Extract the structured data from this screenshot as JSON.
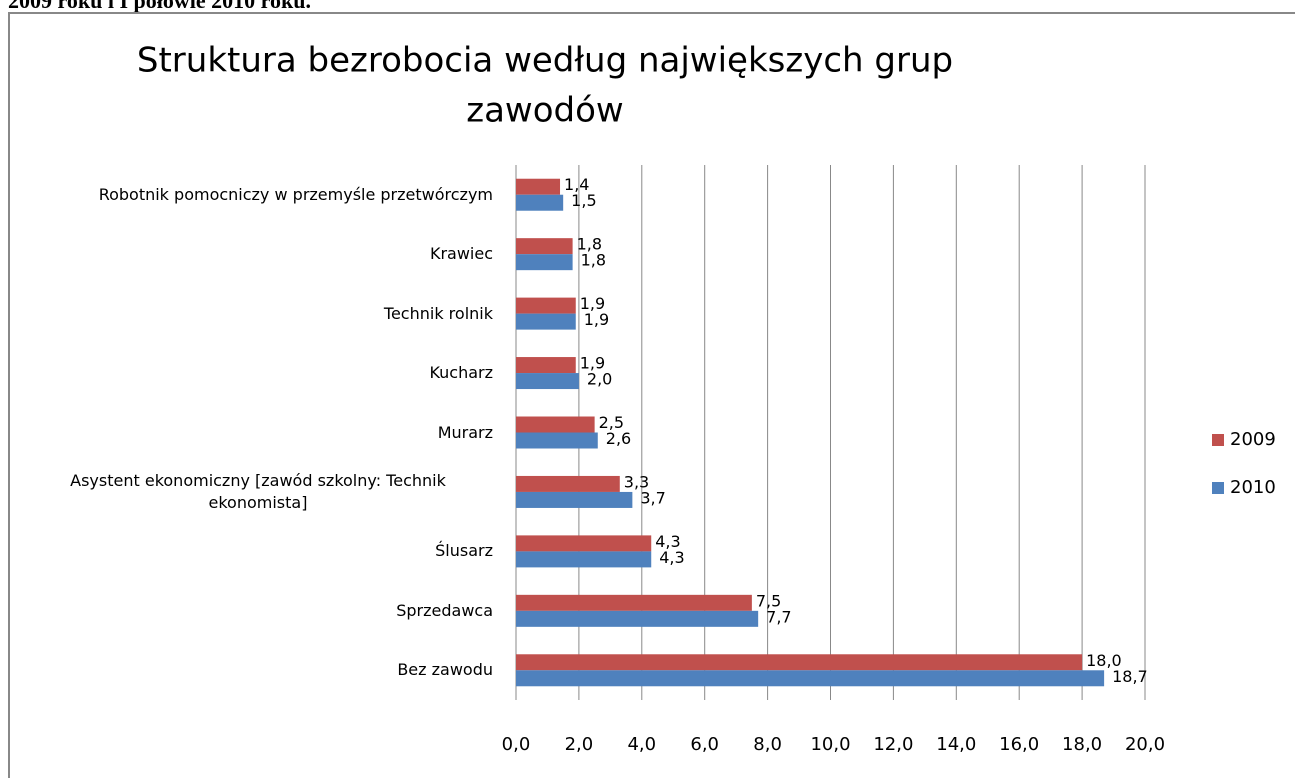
{
  "header_text": "2009 roku i I połowie 2010 roku.",
  "chart_data": {
    "type": "barh",
    "title": [
      "Struktura bezrobocia według największych grup",
      "zawodów"
    ],
    "categories": [
      "Robotnik pomocniczy w przemyśle przetwórczym",
      "Krawiec",
      "Technik rolnik",
      "Kucharz",
      "Murarz",
      "Asystent ekonomiczny [zawód szkolny: Technik ekonomista]",
      "Ślusarz",
      "Sprzedawca",
      "Bez zawodu"
    ],
    "series": [
      {
        "name": "2009",
        "color": "#c0504d",
        "values": [
          1.4,
          1.8,
          1.9,
          1.9,
          2.5,
          3.3,
          4.3,
          7.5,
          18.0
        ],
        "value_labels": [
          "1,4",
          "1,8",
          "1,9",
          "1,9",
          "2,5",
          "3,3",
          "4,3",
          "7,5",
          "18,0"
        ]
      },
      {
        "name": "2010",
        "color": "#4f81bd",
        "values": [
          1.5,
          1.8,
          1.9,
          2.0,
          2.6,
          3.7,
          4.3,
          7.7,
          18.7
        ],
        "value_labels": [
          "1,5",
          "1,8",
          "1,9",
          "2,0",
          "2,6",
          "3,7",
          "4,3",
          "7,7",
          "18,7"
        ]
      }
    ],
    "xlim": [
      0,
      20
    ],
    "xticks": [
      {
        "value": 0,
        "label": "0,0"
      },
      {
        "value": 2,
        "label": "2,0"
      },
      {
        "value": 4,
        "label": "4,0"
      },
      {
        "value": 6,
        "label": "6,0"
      },
      {
        "value": 8,
        "label": "8,0"
      },
      {
        "value": 10,
        "label": "10,0"
      },
      {
        "value": 12,
        "label": "12,0"
      },
      {
        "value": 14,
        "label": "14,0"
      },
      {
        "value": 16,
        "label": "16,0"
      },
      {
        "value": 18,
        "label": "18,0"
      },
      {
        "value": 20,
        "label": "20,0"
      }
    ],
    "grid": true,
    "legend": "right"
  }
}
